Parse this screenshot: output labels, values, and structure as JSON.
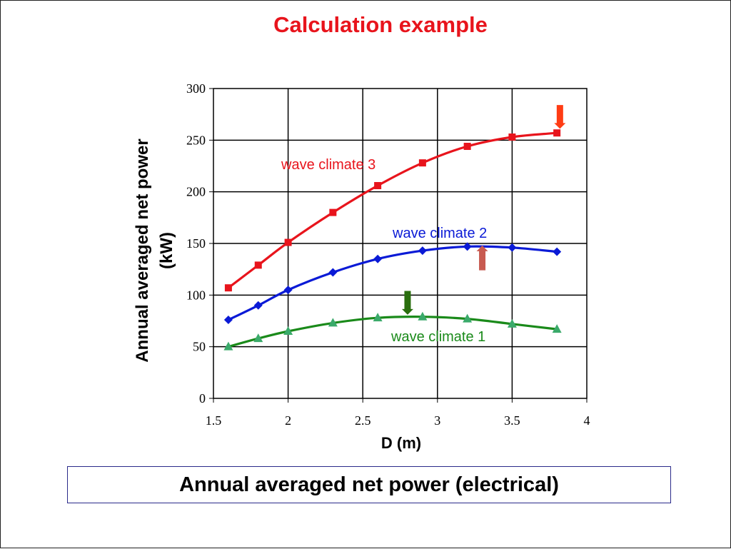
{
  "slide_title": "Calculation example",
  "caption": "Annual averaged net power (electrical)",
  "chart_data": {
    "type": "line",
    "xlabel": "D (m)",
    "ylabel": [
      "Annual averaged net power",
      "(kW)"
    ],
    "xlim": [
      1.5,
      4
    ],
    "ylim": [
      0,
      300
    ],
    "xticks": [
      1.5,
      2,
      2.5,
      3,
      3.5,
      4
    ],
    "xtick_labels": [
      "1.5",
      "2",
      "2.5",
      "3",
      "3.5",
      "4"
    ],
    "yticks": [
      0,
      50,
      100,
      150,
      200,
      250,
      300
    ],
    "ytick_labels": [
      "0",
      "50",
      "100",
      "150",
      "200",
      "250",
      "300"
    ],
    "grid": true,
    "x": [
      1.6,
      1.8,
      2.0,
      2.3,
      2.6,
      2.9,
      3.2,
      3.5,
      3.8
    ],
    "series": [
      {
        "name": "wave climate 1",
        "marker": "triangle",
        "color": "#1a8a1a",
        "marker_color": "#3aaa6a",
        "values": [
          50,
          58,
          65,
          73,
          78,
          79,
          77,
          72,
          67
        ]
      },
      {
        "name": "wave climate 2",
        "marker": "diamond",
        "color": "#0a1ad6",
        "marker_color": "#0a1ad6",
        "values": [
          76,
          90,
          105,
          122,
          135,
          143,
          147,
          146,
          142
        ]
      },
      {
        "name": "wave climate 3",
        "marker": "square",
        "color": "#e8141c",
        "marker_color": "#e8141c",
        "values": [
          107,
          129,
          151,
          180,
          206,
          228,
          244,
          253,
          257
        ]
      }
    ],
    "annotations": [
      {
        "name": "wave-climate-1-arrow",
        "direction": "down",
        "x": 2.8,
        "y_from": 104,
        "y_to": 81,
        "color": "#2a6e0e"
      },
      {
        "name": "wave-climate-2-arrow",
        "direction": "up",
        "x": 3.3,
        "y_from": 124,
        "y_to": 148,
        "color": "#c85a50"
      },
      {
        "name": "wave-climate-3-arrow",
        "direction": "down",
        "x": 3.82,
        "y_from": 284,
        "y_to": 261,
        "color": "#ff3c14"
      }
    ]
  }
}
